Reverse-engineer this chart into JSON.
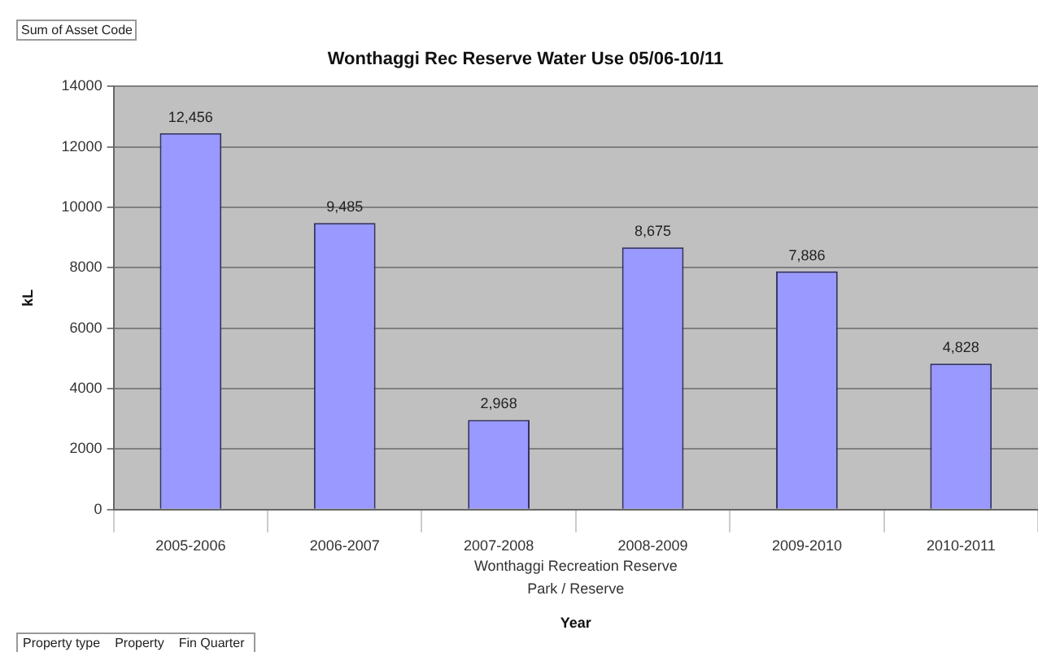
{
  "chart_data": {
    "type": "bar",
    "title": "Wonthaggi Rec Reserve Water Use 05/06-10/11",
    "xlabel": "Year",
    "ylabel": "kL",
    "categories": [
      "2005-2006",
      "2006-2007",
      "2007-2008",
      "2008-2009",
      "2009-2010",
      "2010-2011"
    ],
    "values": [
      12456,
      9485,
      2968,
      8675,
      7886,
      4828
    ],
    "color": "#9999ff",
    "ylim": [
      0,
      14000
    ],
    "yticks": [
      0,
      2000,
      4000,
      6000,
      8000,
      10000,
      12000,
      14000
    ],
    "value_labels": [
      "12,456",
      "9,485",
      "2,968",
      "8,675",
      "7,886",
      "4,828"
    ],
    "grid": "y",
    "legend": false,
    "annotations": [
      "Sum of Asset Code",
      "Wonthaggi Recreation Reserve",
      "Park / Reserve",
      "Property type",
      "Property",
      "Fin Quarter"
    ]
  }
}
